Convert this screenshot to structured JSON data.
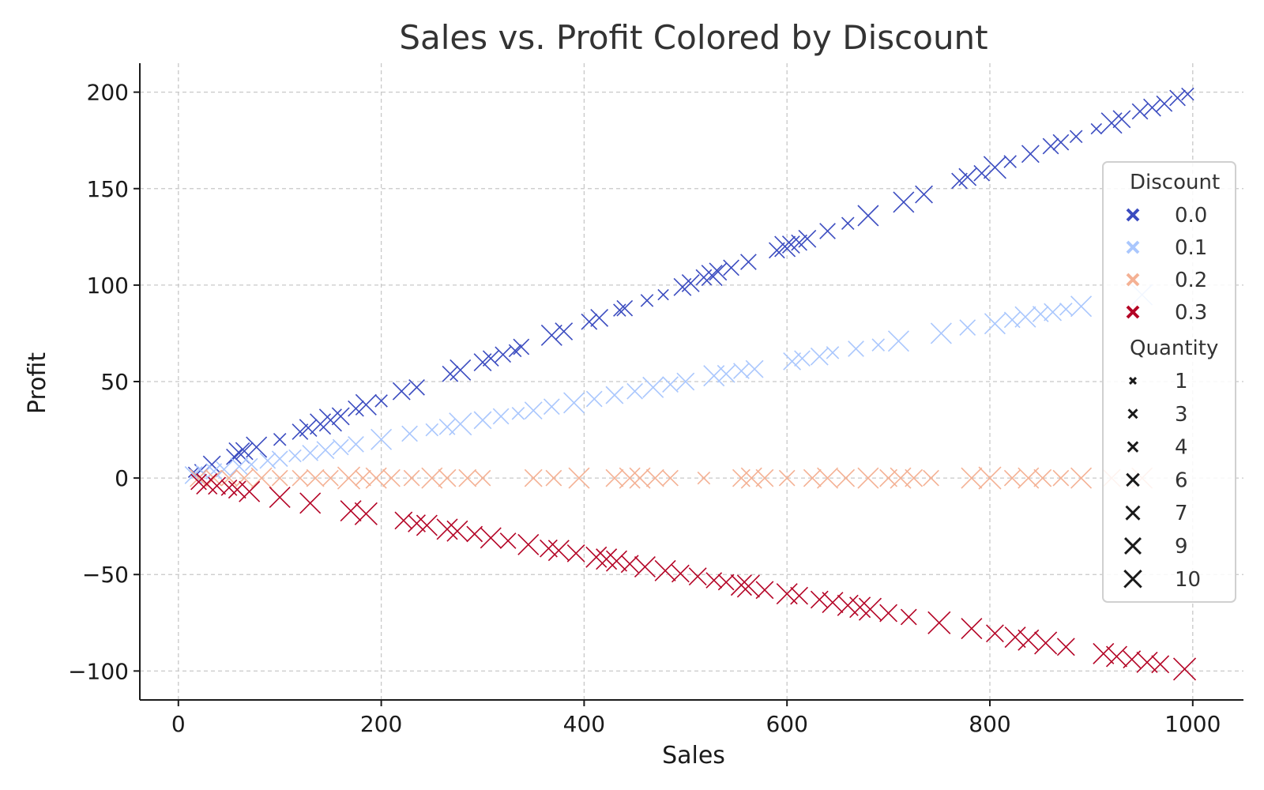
{
  "chart_data": {
    "type": "scatter",
    "title": "Sales vs. Profit Colored by Discount",
    "xlabel": "Sales",
    "ylabel": "Profit",
    "xlim": [
      -38,
      1050
    ],
    "ylim": [
      -115,
      215
    ],
    "xticks": [
      0,
      200,
      400,
      600,
      800,
      1000
    ],
    "yticks": [
      -100,
      -50,
      0,
      50,
      100,
      150,
      200
    ],
    "xtick_labels": [
      "0",
      "200",
      "400",
      "600",
      "800",
      "1000"
    ],
    "ytick_labels": [
      "−100",
      "−50",
      "0",
      "50",
      "100",
      "150",
      "200"
    ],
    "grid": true,
    "legend_placement": "right",
    "marker": "x",
    "series": [
      {
        "name": "0.0",
        "discount": 0.0,
        "color": "#3b4cc0",
        "points": [
          [
            15,
            3,
            3
          ],
          [
            22,
            4,
            4
          ],
          [
            33,
            7,
            7
          ],
          [
            55,
            11,
            6
          ],
          [
            60,
            13,
            9
          ],
          [
            65,
            14,
            7
          ],
          [
            77,
            16,
            9
          ],
          [
            100,
            20,
            4
          ],
          [
            120,
            24,
            6
          ],
          [
            128,
            26,
            7
          ],
          [
            140,
            28,
            9
          ],
          [
            150,
            30,
            10
          ],
          [
            160,
            32,
            7
          ],
          [
            175,
            36,
            6
          ],
          [
            185,
            38,
            9
          ],
          [
            200,
            40,
            4
          ],
          [
            220,
            45,
            7
          ],
          [
            235,
            47,
            6
          ],
          [
            268,
            54,
            6
          ],
          [
            278,
            56,
            9
          ],
          [
            300,
            60,
            7
          ],
          [
            308,
            62,
            6
          ],
          [
            320,
            64,
            6
          ],
          [
            332,
            66,
            4
          ],
          [
            338,
            68,
            6
          ],
          [
            368,
            74,
            9
          ],
          [
            380,
            76,
            7
          ],
          [
            405,
            81,
            6
          ],
          [
            415,
            83,
            7
          ],
          [
            435,
            87,
            4
          ],
          [
            440,
            88,
            6
          ],
          [
            462,
            92,
            4
          ],
          [
            478,
            95,
            3
          ],
          [
            497,
            99,
            7
          ],
          [
            505,
            101,
            7
          ],
          [
            518,
            104,
            6
          ],
          [
            526,
            105,
            9
          ],
          [
            532,
            107,
            7
          ],
          [
            545,
            109,
            6
          ],
          [
            562,
            112,
            6
          ],
          [
            590,
            118,
            6
          ],
          [
            598,
            120,
            9
          ],
          [
            604,
            121,
            7
          ],
          [
            612,
            122,
            6
          ],
          [
            620,
            124,
            7
          ],
          [
            640,
            128,
            6
          ],
          [
            660,
            132,
            4
          ],
          [
            680,
            136,
            9
          ],
          [
            715,
            143,
            9
          ],
          [
            735,
            147,
            7
          ],
          [
            770,
            154,
            6
          ],
          [
            778,
            156,
            7
          ],
          [
            792,
            158,
            6
          ],
          [
            805,
            161,
            10
          ],
          [
            820,
            164,
            4
          ],
          [
            840,
            168,
            7
          ],
          [
            860,
            172,
            6
          ],
          [
            870,
            174,
            6
          ],
          [
            885,
            177,
            4
          ],
          [
            905,
            181,
            3
          ],
          [
            920,
            184,
            9
          ],
          [
            930,
            186,
            7
          ],
          [
            948,
            190,
            6
          ],
          [
            960,
            192,
            7
          ],
          [
            972,
            194,
            6
          ],
          [
            985,
            197,
            6
          ],
          [
            995,
            199,
            4
          ]
        ]
      },
      {
        "name": "0.1",
        "discount": 0.1,
        "color": "#aac7fd",
        "points": [
          [
            15,
            1.5,
            7
          ],
          [
            25,
            2.5,
            6
          ],
          [
            35,
            3.5,
            6
          ],
          [
            45,
            4.5,
            6
          ],
          [
            60,
            6,
            7
          ],
          [
            72,
            7,
            4
          ],
          [
            88,
            9,
            6
          ],
          [
            100,
            10,
            6
          ],
          [
            115,
            11.5,
            4
          ],
          [
            130,
            13,
            6
          ],
          [
            145,
            14.5,
            7
          ],
          [
            160,
            16,
            6
          ],
          [
            175,
            17.5,
            6
          ],
          [
            200,
            20,
            9
          ],
          [
            228,
            23,
            6
          ],
          [
            250,
            25,
            4
          ],
          [
            265,
            26.5,
            6
          ],
          [
            278,
            28,
            10
          ],
          [
            300,
            30,
            7
          ],
          [
            318,
            32,
            6
          ],
          [
            335,
            33.5,
            4
          ],
          [
            350,
            35,
            7
          ],
          [
            368,
            37,
            6
          ],
          [
            390,
            39,
            9
          ],
          [
            410,
            41,
            6
          ],
          [
            430,
            43,
            7
          ],
          [
            450,
            45,
            6
          ],
          [
            468,
            47,
            9
          ],
          [
            485,
            48.5,
            6
          ],
          [
            500,
            50,
            7
          ],
          [
            528,
            53,
            9
          ],
          [
            540,
            54,
            7
          ],
          [
            555,
            55.5,
            6
          ],
          [
            568,
            56.5,
            7
          ],
          [
            605,
            60.5,
            7
          ],
          [
            615,
            62,
            6
          ],
          [
            632,
            63,
            7
          ],
          [
            645,
            65,
            4
          ],
          [
            668,
            67,
            6
          ],
          [
            690,
            69,
            4
          ],
          [
            710,
            71,
            9
          ],
          [
            752,
            75,
            9
          ],
          [
            778,
            78,
            6
          ],
          [
            805,
            80,
            9
          ],
          [
            822,
            82,
            6
          ],
          [
            835,
            83.5,
            9
          ],
          [
            850,
            85,
            6
          ],
          [
            862,
            86,
            7
          ],
          [
            875,
            87.5,
            4
          ],
          [
            890,
            89,
            9
          ],
          [
            950,
            95,
            9
          ]
        ]
      },
      {
        "name": "0.2",
        "discount": 0.2,
        "color": "#f4b194",
        "points": [
          [
            20,
            0,
            7
          ],
          [
            35,
            0,
            6
          ],
          [
            50,
            0,
            6
          ],
          [
            65,
            0,
            7
          ],
          [
            82,
            0,
            9
          ],
          [
            100,
            0,
            6
          ],
          [
            120,
            0,
            6
          ],
          [
            135,
            0,
            7
          ],
          [
            150,
            0,
            6
          ],
          [
            168,
            0,
            10
          ],
          [
            182,
            0,
            6
          ],
          [
            195,
            0,
            9
          ],
          [
            210,
            0,
            7
          ],
          [
            230,
            0,
            6
          ],
          [
            250,
            0,
            9
          ],
          [
            265,
            0,
            7
          ],
          [
            285,
            0,
            7
          ],
          [
            300,
            0,
            6
          ],
          [
            350,
            0,
            7
          ],
          [
            370,
            0,
            6
          ],
          [
            395,
            0,
            9
          ],
          [
            430,
            0,
            7
          ],
          [
            445,
            0,
            9
          ],
          [
            455,
            0,
            9
          ],
          [
            470,
            0,
            7
          ],
          [
            485,
            0,
            6
          ],
          [
            518,
            0,
            4
          ],
          [
            555,
            0,
            7
          ],
          [
            565,
            0,
            9
          ],
          [
            578,
            0,
            7
          ],
          [
            600,
            0,
            6
          ],
          [
            625,
            0,
            7
          ],
          [
            640,
            0,
            9
          ],
          [
            658,
            0,
            7
          ],
          [
            680,
            0,
            9
          ],
          [
            700,
            0,
            7
          ],
          [
            712,
            0,
            9
          ],
          [
            725,
            0,
            7
          ],
          [
            742,
            0,
            6
          ],
          [
            782,
            0,
            9
          ],
          [
            800,
            0,
            10
          ],
          [
            822,
            0,
            6
          ],
          [
            838,
            0,
            9
          ],
          [
            852,
            0,
            7
          ],
          [
            870,
            0,
            6
          ],
          [
            890,
            0,
            9
          ],
          [
            920,
            0,
            7
          ],
          [
            950,
            0,
            9
          ]
        ]
      },
      {
        "name": "0.3",
        "discount": 0.3,
        "color": "#b40426",
        "points": [
          [
            20,
            -2,
            6
          ],
          [
            28,
            -3,
            9
          ],
          [
            38,
            -4,
            7
          ],
          [
            50,
            -5,
            6
          ],
          [
            58,
            -6,
            7
          ],
          [
            70,
            -7,
            9
          ],
          [
            100,
            -10,
            9
          ],
          [
            130,
            -13,
            9
          ],
          [
            170,
            -17,
            9
          ],
          [
            185,
            -18.5,
            10
          ],
          [
            222,
            -22,
            7
          ],
          [
            235,
            -23.5,
            7
          ],
          [
            245,
            -24.5,
            9
          ],
          [
            265,
            -26.5,
            9
          ],
          [
            275,
            -27.5,
            9
          ],
          [
            292,
            -29,
            6
          ],
          [
            308,
            -31,
            9
          ],
          [
            325,
            -32.5,
            6
          ],
          [
            345,
            -34.5,
            9
          ],
          [
            365,
            -36.5,
            7
          ],
          [
            375,
            -37.5,
            9
          ],
          [
            392,
            -39,
            7
          ],
          [
            412,
            -41,
            9
          ],
          [
            422,
            -42,
            9
          ],
          [
            432,
            -43,
            9
          ],
          [
            445,
            -44.5,
            7
          ],
          [
            460,
            -46,
            9
          ],
          [
            480,
            -48,
            9
          ],
          [
            495,
            -49.5,
            7
          ],
          [
            512,
            -51,
            7
          ],
          [
            528,
            -53,
            6
          ],
          [
            540,
            -54,
            6
          ],
          [
            555,
            -55.5,
            9
          ],
          [
            562,
            -56,
            10
          ],
          [
            578,
            -58,
            7
          ],
          [
            600,
            -60,
            9
          ],
          [
            612,
            -61,
            7
          ],
          [
            632,
            -63,
            7
          ],
          [
            645,
            -64.5,
            9
          ],
          [
            660,
            -66,
            9
          ],
          [
            672,
            -67,
            9
          ],
          [
            682,
            -68,
            10
          ],
          [
            700,
            -70,
            7
          ],
          [
            720,
            -72,
            6
          ],
          [
            750,
            -75,
            10
          ],
          [
            782,
            -78,
            9
          ],
          [
            805,
            -80.5,
            7
          ],
          [
            825,
            -82.5,
            9
          ],
          [
            838,
            -84,
            9
          ],
          [
            855,
            -85.5,
            10
          ],
          [
            875,
            -87.5,
            7
          ],
          [
            912,
            -91,
            9
          ],
          [
            925,
            -92.5,
            9
          ],
          [
            940,
            -94,
            7
          ],
          [
            955,
            -95.5,
            9
          ],
          [
            968,
            -96.5,
            7
          ],
          [
            992,
            -99,
            10
          ]
        ]
      }
    ],
    "legend": {
      "discount_title": "Discount",
      "discount_entries": [
        {
          "label": "0.0",
          "color": "#3b4cc0"
        },
        {
          "label": "0.1",
          "color": "#aac7fd"
        },
        {
          "label": "0.2",
          "color": "#f4b194"
        },
        {
          "label": "0.3",
          "color": "#b40426"
        }
      ],
      "quantity_title": "Quantity",
      "quantity_entries": [
        {
          "label": "1",
          "quantity": 1
        },
        {
          "label": "3",
          "quantity": 3
        },
        {
          "label": "4",
          "quantity": 4
        },
        {
          "label": "6",
          "quantity": 6
        },
        {
          "label": "7",
          "quantity": 7
        },
        {
          "label": "9",
          "quantity": 9
        },
        {
          "label": "10",
          "quantity": 10
        }
      ]
    }
  }
}
